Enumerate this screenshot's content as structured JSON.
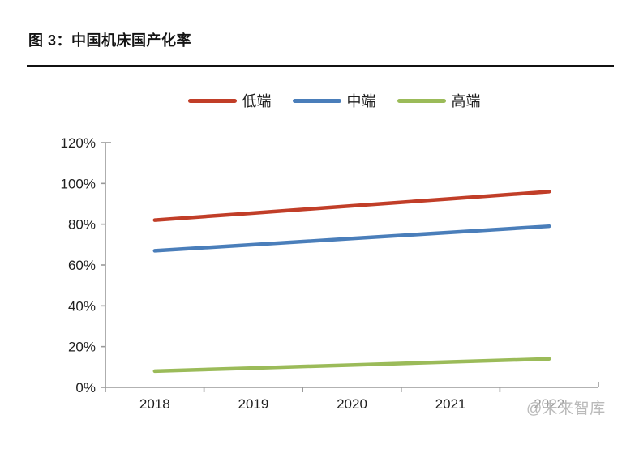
{
  "header": {
    "title": "图 3：中国机床国产化率"
  },
  "watermark": {
    "text": "@未来智库",
    "overlaps_category": "2022"
  },
  "chart_data": {
    "type": "line",
    "title": "图 3：中国机床国产化率",
    "categories": [
      "2018",
      "2019",
      "2020",
      "2021",
      "2022"
    ],
    "series": [
      {
        "name": "低端",
        "color": "#c13e28",
        "values": [
          82,
          85.5,
          89,
          92.5,
          96
        ]
      },
      {
        "name": "中端",
        "color": "#4a7eba",
        "values": [
          67,
          70,
          73,
          76,
          79
        ]
      },
      {
        "name": "高端",
        "color": "#9bbb59",
        "values": [
          8,
          9.5,
          11,
          12.5,
          14
        ]
      }
    ],
    "xlabel": "",
    "ylabel": "",
    "ylim": [
      0,
      120
    ],
    "ytick_step": 20,
    "ytick_labels": [
      "0%",
      "20%",
      "40%",
      "60%",
      "80%",
      "100%",
      "120%"
    ],
    "grid": false,
    "legend_position": "top",
    "axis_color": "#999999",
    "label_color": "#1f1f1f",
    "faded_label_color": "#9a9a9a"
  }
}
